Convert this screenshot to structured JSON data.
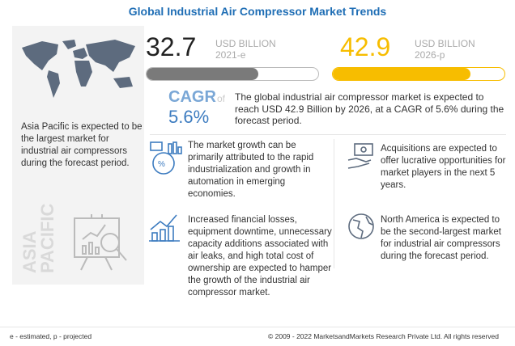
{
  "title": "Global Industrial Air Compressor Market Trends",
  "left": {
    "text": "Asia Pacific is expected to be the largest market for industrial air compressors during the forecast period.",
    "vertical_line1": "ASIA",
    "vertical_line2": "PACIFIC"
  },
  "stat_2021": {
    "value": "32.7",
    "unit": "USD BILLION",
    "year": "2021-e",
    "bar_fill_pct": 65,
    "color": "#7a7a7a"
  },
  "stat_2026": {
    "value": "42.9",
    "unit": "USD BILLION",
    "year": "2026-p",
    "bar_fill_pct": 80,
    "color": "#f7bd00"
  },
  "cagr": {
    "label": "CAGR",
    "of": "of",
    "value": "5.6%",
    "color": "#6fa1d2"
  },
  "summary": "The global industrial air compressor market is expected to reach USD 42.9 Billion  by 2026, at a CAGR of 5.6% during the forecast period.",
  "items": [
    {
      "icon": "automation-icon",
      "text": "The market growth can be primarily attributed to the rapid industrialization and growth in automation in emerging economies."
    },
    {
      "icon": "money-handshake-icon",
      "text": "Acquisitions are expected to offer lucrative opportunities for market players in the next 5 years."
    },
    {
      "icon": "financial-loss-chart-icon",
      "text": "Increased financial losses, equipment downtime, unnecessary capacity additions associated with air leaks, and high total cost of ownership are expected to hamper the growth of the industrial air compressor market."
    },
    {
      "icon": "globe-icon",
      "text": "North America is expected to be the second-largest market for industrial air compressors during the forecast period."
    }
  ],
  "footer": {
    "legend": "e - estimated, p - projected",
    "copyright": "© 2009 - 2022 MarketsandMarkets Research Private Ltd. All rights reserved"
  }
}
